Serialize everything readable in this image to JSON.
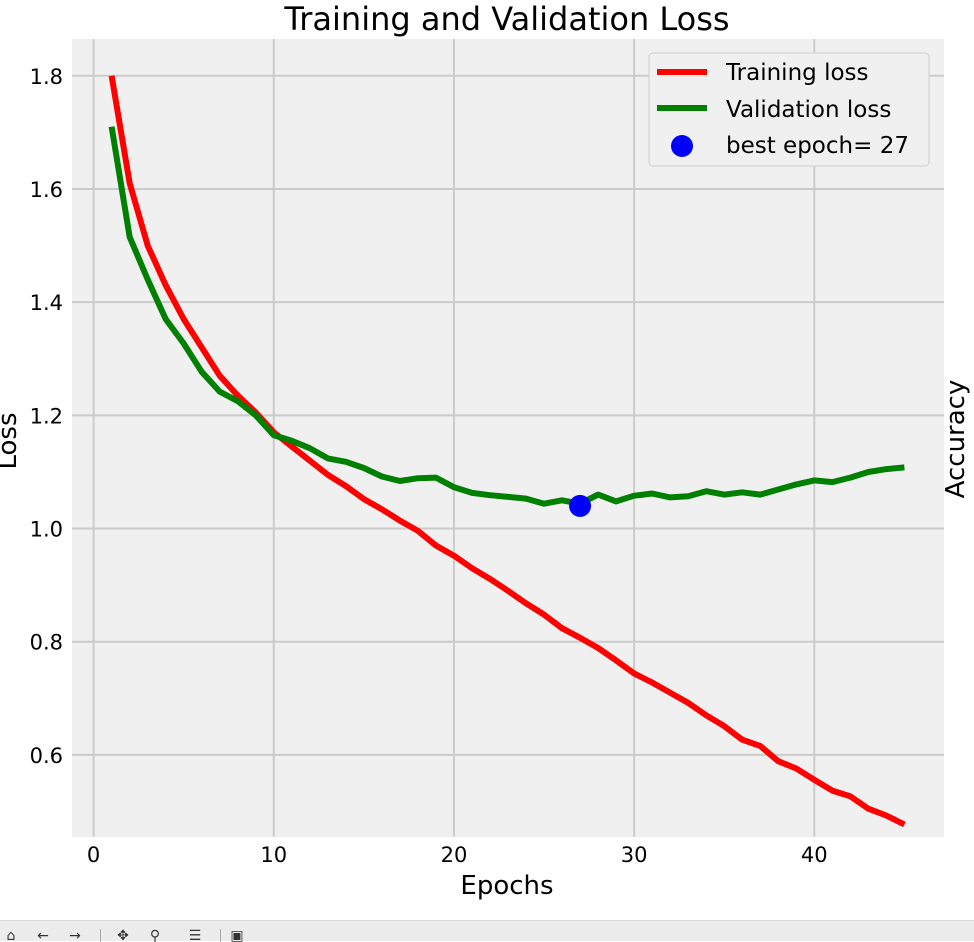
{
  "chart_data": {
    "type": "line",
    "title": "Training and Validation Loss",
    "xlabel": "Epochs",
    "ylabel": "Loss",
    "ylabel_right": "Accuracy",
    "xlim": [
      -1.2,
      47.2
    ],
    "ylim": [
      0.455,
      1.865
    ],
    "xticks": [
      0,
      10,
      20,
      30,
      40
    ],
    "yticks": [
      0.6,
      0.8,
      1.0,
      1.2,
      1.4,
      1.6,
      1.8
    ],
    "grid": true,
    "legend_position": "top-right",
    "x": [
      1,
      2,
      3,
      4,
      5,
      6,
      7,
      8,
      9,
      10,
      11,
      12,
      13,
      14,
      15,
      16,
      17,
      18,
      19,
      20,
      21,
      22,
      23,
      24,
      25,
      26,
      27,
      28,
      29,
      30,
      31,
      32,
      33,
      34,
      35,
      36,
      37,
      38,
      39,
      40,
      41,
      42,
      43,
      44,
      45
    ],
    "series": [
      {
        "name": "Training loss",
        "color": "#ff0000",
        "values": [
          1.8,
          1.61,
          1.5,
          1.43,
          1.37,
          1.32,
          1.27,
          1.235,
          1.205,
          1.17,
          1.145,
          1.12,
          1.095,
          1.075,
          1.052,
          1.034,
          1.014,
          0.996,
          0.97,
          0.952,
          0.93,
          0.911,
          0.89,
          0.868,
          0.848,
          0.824,
          0.807,
          0.789,
          0.767,
          0.744,
          0.728,
          0.71,
          0.692,
          0.67,
          0.651,
          0.627,
          0.616,
          0.589,
          0.576,
          0.556,
          0.537,
          0.527,
          0.505,
          0.493,
          0.477
        ]
      },
      {
        "name": "Validation loss",
        "color": "#008000",
        "values": [
          1.71,
          1.515,
          1.44,
          1.37,
          1.327,
          1.277,
          1.242,
          1.225,
          1.2,
          1.165,
          1.155,
          1.142,
          1.124,
          1.118,
          1.107,
          1.092,
          1.084,
          1.089,
          1.09,
          1.073,
          1.063,
          1.059,
          1.056,
          1.053,
          1.044,
          1.05,
          1.044,
          1.06,
          1.048,
          1.058,
          1.062,
          1.055,
          1.057,
          1.066,
          1.06,
          1.064,
          1.06,
          1.069,
          1.078,
          1.085,
          1.082,
          1.09,
          1.1,
          1.105,
          1.108
        ]
      }
    ],
    "highlight": {
      "label": "best epoch= 27",
      "x": 27,
      "y": 1.04,
      "color": "#0000ff"
    }
  },
  "toolbar": {
    "buttons": [
      {
        "name": "home",
        "glyph": "⌂"
      },
      {
        "name": "back",
        "glyph": "←"
      },
      {
        "name": "forward",
        "glyph": "→"
      },
      {
        "name": "pan",
        "glyph": "✥"
      },
      {
        "name": "zoom",
        "glyph": "⚲"
      },
      {
        "name": "subplots",
        "glyph": "☰"
      },
      {
        "name": "save",
        "glyph": "▣"
      }
    ]
  }
}
